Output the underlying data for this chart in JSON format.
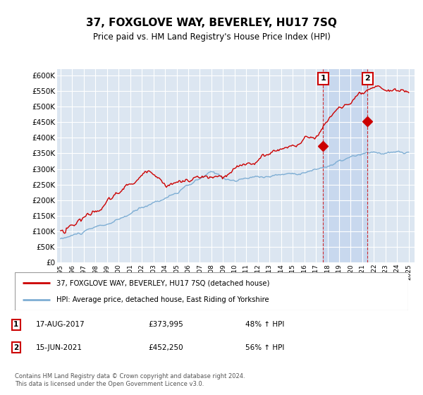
{
  "title": "37, FOXGLOVE WAY, BEVERLEY, HU17 7SQ",
  "subtitle": "Price paid vs. HM Land Registry's House Price Index (HPI)",
  "ylim": [
    0,
    620000
  ],
  "yticks": [
    0,
    50000,
    100000,
    150000,
    200000,
    250000,
    300000,
    350000,
    400000,
    450000,
    500000,
    550000,
    600000
  ],
  "background_color": "#dce6f1",
  "highlight_color": "#c8d8ee",
  "grid_color": "#ffffff",
  "red_color": "#cc0000",
  "blue_color": "#7eaed4",
  "legend_label_red": "37, FOXGLOVE WAY, BEVERLEY, HU17 7SQ (detached house)",
  "legend_label_blue": "HPI: Average price, detached house, East Riding of Yorkshire",
  "annotation1_date": "17-AUG-2017",
  "annotation1_price": "£373,995",
  "annotation1_hpi": "48% ↑ HPI",
  "annotation2_date": "15-JUN-2021",
  "annotation2_price": "£452,250",
  "annotation2_hpi": "56% ↑ HPI",
  "footer": "Contains HM Land Registry data © Crown copyright and database right 2024.\nThis data is licensed under the Open Government Licence v3.0.",
  "sale1_year": 2017.63,
  "sale1_price": 373995,
  "sale2_year": 2021.46,
  "sale2_price": 452250
}
